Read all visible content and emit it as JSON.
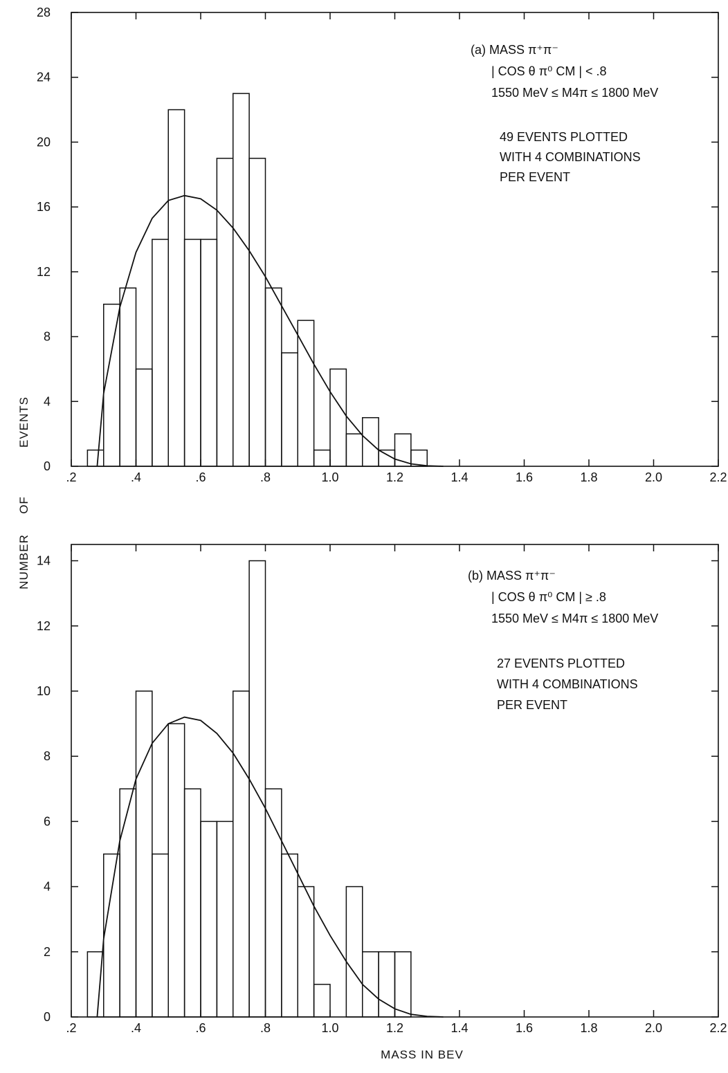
{
  "y_axis_label_words": [
    "NUMBER",
    "OF",
    "EVENTS"
  ],
  "x_axis_label": "MASS IN BEV",
  "chart_data": [
    {
      "type": "bar",
      "panel": "(a)",
      "annotation": [
        "(a) MASS π⁺π⁻",
        "| COS θ π⁰ CM | < .8",
        "1550 MeV ≤ M4π ≤ 1800 MeV",
        "49 EVENTS PLOTTED",
        "WITH 4 COMBINATIONS",
        "PER EVENT"
      ],
      "xlim": [
        0.2,
        2.2
      ],
      "ylim": [
        0,
        28
      ],
      "x_ticks": [
        ".2",
        ".4",
        ".6",
        ".8",
        "1.0",
        "1.2",
        "1.4",
        "1.6",
        "1.8",
        "2.0",
        "2.2"
      ],
      "y_ticks": [
        "0",
        "4",
        "8",
        "12",
        "16",
        "20",
        "24",
        "28"
      ],
      "bin_width": 0.05,
      "bin_edges_start": 0.25,
      "values": [
        1,
        10,
        11,
        6,
        14,
        22,
        14,
        14,
        19,
        23,
        19,
        11,
        7,
        9,
        1,
        6,
        2,
        3,
        1,
        2,
        1
      ],
      "curve": {
        "x": [
          0.28,
          0.3,
          0.35,
          0.4,
          0.45,
          0.5,
          0.55,
          0.6,
          0.65,
          0.7,
          0.75,
          0.8,
          0.85,
          0.9,
          0.95,
          1.0,
          1.05,
          1.1,
          1.15,
          1.2,
          1.25,
          1.3,
          1.35
        ],
        "y": [
          0,
          4.5,
          9.8,
          13.2,
          15.3,
          16.4,
          16.7,
          16.5,
          15.8,
          14.7,
          13.3,
          11.7,
          9.9,
          8.1,
          6.3,
          4.6,
          3.1,
          1.9,
          1.0,
          0.45,
          0.15,
          0.03,
          0
        ]
      }
    },
    {
      "type": "bar",
      "panel": "(b)",
      "annotation": [
        "(b) MASS π⁺π⁻",
        "| COS θ π⁰ CM | ≥ .8",
        "1550 MeV ≤ M4π ≤ 1800 MeV",
        "27 EVENTS PLOTTED",
        "WITH 4 COMBINATIONS",
        "PER EVENT"
      ],
      "xlim": [
        0.2,
        2.2
      ],
      "ylim": [
        0,
        14.5
      ],
      "x_ticks": [
        ".2",
        ".4",
        ".6",
        ".8",
        "1.0",
        "1.2",
        "1.4",
        "1.6",
        "1.8",
        "2.0",
        "2.2"
      ],
      "y_ticks": [
        "0",
        "2",
        "4",
        "6",
        "8",
        "10",
        "12",
        "14"
      ],
      "bin_width": 0.05,
      "bin_edges_start": 0.25,
      "values": [
        2,
        5,
        7,
        10,
        5,
        9,
        7,
        6,
        6,
        10,
        14,
        7,
        5,
        4,
        1,
        0,
        4,
        2,
        2,
        2
      ],
      "curve": {
        "x": [
          0.28,
          0.3,
          0.35,
          0.4,
          0.45,
          0.5,
          0.55,
          0.6,
          0.65,
          0.7,
          0.75,
          0.8,
          0.85,
          0.9,
          0.95,
          1.0,
          1.05,
          1.1,
          1.15,
          1.2,
          1.25,
          1.3,
          1.35
        ],
        "y": [
          0,
          2.4,
          5.4,
          7.3,
          8.4,
          9.0,
          9.2,
          9.1,
          8.7,
          8.1,
          7.3,
          6.4,
          5.4,
          4.4,
          3.4,
          2.5,
          1.7,
          1.0,
          0.55,
          0.25,
          0.08,
          0.02,
          0
        ]
      }
    }
  ]
}
